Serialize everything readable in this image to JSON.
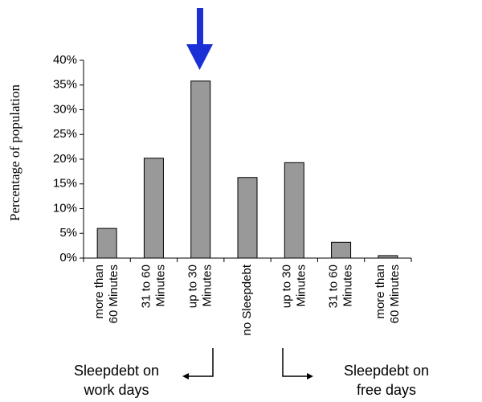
{
  "chart_data": {
    "type": "bar",
    "ylabel": "Percentage of population",
    "xlabel": "",
    "ylim": [
      0,
      40
    ],
    "yticks": [
      "0%",
      "5%",
      "10%",
      "15%",
      "20%",
      "25%",
      "30%",
      "35%",
      "40%"
    ],
    "categories": [
      [
        "more than",
        "60 Minutes"
      ],
      [
        "31 to 60",
        "Minutes"
      ],
      [
        "up to 30",
        "Minutes"
      ],
      [
        "no Sleepdebt"
      ],
      [
        "up to 30",
        "Minutes"
      ],
      [
        "31 to 60",
        "Minutes"
      ],
      [
        "more than",
        "60 Minutes"
      ]
    ],
    "values": [
      6,
      20.2,
      35.8,
      16.3,
      19.3,
      3.2,
      0.5
    ],
    "bar_color": "#999999",
    "highlight_arrow_color": "#1b2fd6",
    "highlight_category_index": 2,
    "grid": false
  },
  "annotations": {
    "work_days": [
      "Sleepdebt on",
      "work days"
    ],
    "free_days": [
      "Sleepdebt on",
      "free days"
    ]
  }
}
